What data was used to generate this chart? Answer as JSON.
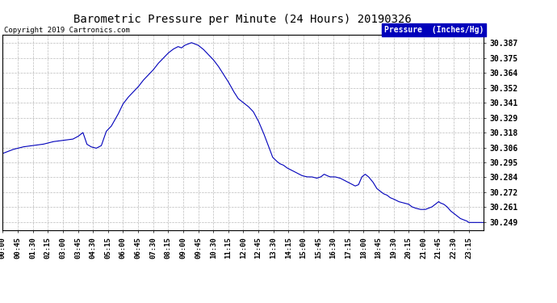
{
  "title": "Barometric Pressure per Minute (24 Hours) 20190326",
  "copyright": "Copyright 2019 Cartronics.com",
  "legend_label": "Pressure  (Inches/Hg)",
  "line_color": "#0000bb",
  "background_color": "#ffffff",
  "plot_bg_color": "#ffffff",
  "grid_color": "#bbbbbb",
  "yticks": [
    30.249,
    30.261,
    30.272,
    30.284,
    30.295,
    30.306,
    30.318,
    30.329,
    30.341,
    30.352,
    30.364,
    30.375,
    30.387
  ],
  "ylim": [
    30.243,
    30.393
  ],
  "xtick_labels": [
    "00:00",
    "00:45",
    "01:30",
    "02:15",
    "03:00",
    "03:45",
    "04:30",
    "05:15",
    "06:00",
    "06:45",
    "07:30",
    "08:15",
    "09:00",
    "09:45",
    "10:30",
    "11:15",
    "12:00",
    "12:45",
    "13:30",
    "14:15",
    "15:00",
    "15:45",
    "16:30",
    "17:15",
    "18:00",
    "18:45",
    "19:30",
    "20:15",
    "21:00",
    "21:45",
    "22:30",
    "23:15"
  ]
}
